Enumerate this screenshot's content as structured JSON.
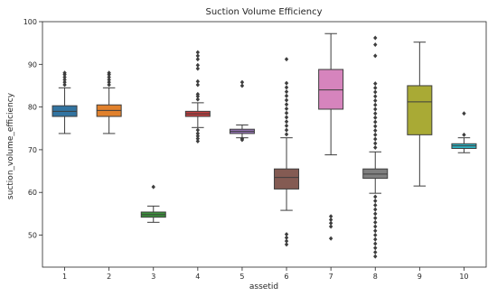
{
  "chart_data": {
    "type": "box",
    "title": "Suction Volume Efficiency",
    "xlabel": "assetid",
    "ylabel": "suction_volume_efficiency",
    "ylim": [
      42.5,
      100
    ],
    "yticks": [
      50,
      60,
      70,
      80,
      90,
      100
    ],
    "categories": [
      "1",
      "2",
      "3",
      "4",
      "5",
      "6",
      "7",
      "8",
      "9",
      "10"
    ],
    "grid": false,
    "legend": "none",
    "boxes": [
      {
        "category": "1",
        "color": "#3274a1",
        "whislo": 73.8,
        "q1": 77.8,
        "med": 79.0,
        "q3": 80.3,
        "whishi": 84.5,
        "fliers": [
          85.2,
          85.8,
          86.4,
          87.0,
          87.6,
          88.0
        ]
      },
      {
        "category": "2",
        "color": "#e1812c",
        "whislo": 73.8,
        "q1": 77.8,
        "med": 79.2,
        "q3": 80.5,
        "whishi": 84.5,
        "fliers": [
          85.2,
          85.8,
          86.4,
          87.0,
          87.6,
          88.0
        ]
      },
      {
        "category": "3",
        "color": "#3a923a",
        "whislo": 53.0,
        "q1": 54.2,
        "med": 54.8,
        "q3": 55.4,
        "whishi": 56.8,
        "fliers": [
          61.3
        ]
      },
      {
        "category": "4",
        "color": "#c03d3e",
        "whislo": 75.2,
        "q1": 77.8,
        "med": 78.4,
        "q3": 79.0,
        "whishi": 81.0,
        "fliers": [
          72.0,
          72.6,
          73.2,
          73.8,
          74.6,
          81.8,
          82.5,
          83.0,
          85.2,
          86.0,
          89.0,
          89.8,
          91.2,
          92.0,
          92.8
        ]
      },
      {
        "category": "5",
        "color": "#9372b2",
        "whislo": 72.8,
        "q1": 73.8,
        "med": 74.3,
        "q3": 74.8,
        "whishi": 75.8,
        "fliers": [
          72.3,
          72.6,
          85.0,
          85.8
        ]
      },
      {
        "category": "6",
        "color": "#845b53",
        "whislo": 55.8,
        "q1": 60.8,
        "med": 63.5,
        "q3": 65.5,
        "whishi": 72.8,
        "fliers": [
          47.8,
          48.6,
          49.4,
          50.2,
          73.6,
          74.6,
          75.6,
          76.6,
          77.6,
          78.6,
          79.6,
          80.6,
          81.6,
          82.6,
          83.6,
          84.6,
          85.6,
          91.2
        ]
      },
      {
        "category": "7",
        "color": "#d684bd",
        "whislo": 68.8,
        "q1": 79.5,
        "med": 84.0,
        "q3": 88.8,
        "whishi": 97.2,
        "fliers": [
          49.2,
          52.0,
          52.8,
          53.6,
          54.4
        ]
      },
      {
        "category": "8",
        "color": "#7f7f7f",
        "whislo": 59.8,
        "q1": 63.3,
        "med": 64.3,
        "q3": 65.5,
        "whishi": 69.5,
        "fliers": [
          45.0,
          46.0,
          47.0,
          48.0,
          49.0,
          50.0,
          51.0,
          52.0,
          53.0,
          54.0,
          55.0,
          56.0,
          57.0,
          58.0,
          59.0,
          70.5,
          71.5,
          72.5,
          73.5,
          74.5,
          75.5,
          76.5,
          77.5,
          78.5,
          79.5,
          80.5,
          81.5,
          82.5,
          83.5,
          84.5,
          85.5,
          92.0,
          94.6,
          96.2
        ]
      },
      {
        "category": "9",
        "color": "#a9aa35",
        "whislo": 61.5,
        "q1": 73.5,
        "med": 81.2,
        "q3": 85.0,
        "whishi": 95.2,
        "fliers": []
      },
      {
        "category": "10",
        "color": "#2eb4c4",
        "whislo": 69.3,
        "q1": 70.3,
        "med": 70.9,
        "q3": 71.4,
        "whishi": 72.8,
        "fliers": [
          73.5,
          78.5
        ]
      }
    ]
  }
}
